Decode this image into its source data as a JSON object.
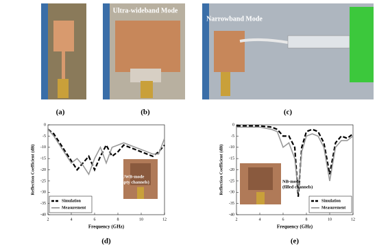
{
  "panels": [
    "(a)",
    "(b)",
    "(c)",
    "(d)",
    "(e)"
  ],
  "photos": {
    "b_label": "Ultra-wideband Mode",
    "c_label": "Narrowband Mode"
  },
  "chart_data": [
    {
      "type": "line",
      "xlabel": "Frequency (GHz)",
      "ylabel": "Reflection Coefficient (dB)",
      "x": [
        2,
        2.5,
        3,
        3.5,
        4,
        4.5,
        5,
        5.5,
        6,
        6.5,
        7,
        7.5,
        8,
        8.5,
        9,
        9.5,
        10,
        10.5,
        11,
        11.5,
        12
      ],
      "series": [
        {
          "name": "Simulation",
          "color": "#000000",
          "dash": true,
          "values": [
            -2,
            -4,
            -8,
            -12,
            -16,
            -20,
            -17,
            -14,
            -20,
            -14,
            -9,
            -14,
            -12,
            -9,
            -10,
            -11,
            -12,
            -13,
            -14,
            -12,
            -9
          ]
        },
        {
          "name": "Measurement",
          "color": "#999999",
          "dash": false,
          "values": [
            -2,
            -5,
            -9,
            -13,
            -17,
            -15,
            -18,
            -22,
            -15,
            -10,
            -17,
            -10,
            -9,
            -8,
            -9,
            -10,
            -11,
            -12,
            -13,
            -13,
            -6
          ]
        }
      ],
      "xlim": [
        2,
        12
      ],
      "xticks": [
        2,
        4,
        6,
        8,
        10,
        12
      ],
      "ylim": [
        -40,
        0
      ],
      "yticks": [
        0,
        -5,
        -10,
        -15,
        -20,
        -25,
        -30,
        -35,
        -40
      ],
      "legend": "lower left",
      "annotations": [
        "UWB-mode",
        "(empty channels)"
      ]
    },
    {
      "type": "line",
      "xlabel": "Frequency (GHz)",
      "ylabel": "Reflection Coefficient (dB)",
      "x": [
        2,
        3,
        4,
        5,
        5.5,
        6,
        6.5,
        7,
        7.3,
        7.6,
        8,
        8.5,
        9,
        9.5,
        10,
        10.5,
        11,
        11.5,
        12
      ],
      "series": [
        {
          "name": "Simulation",
          "color": "#000000",
          "dash": true,
          "values": [
            -0.5,
            -0.5,
            -0.5,
            -1,
            -2,
            -5,
            -5,
            -10,
            -32,
            -10,
            -3,
            -2,
            -3,
            -8,
            -22,
            -8,
            -5,
            -6,
            -4
          ]
        },
        {
          "name": "Measurement",
          "color": "#999999",
          "dash": false,
          "values": [
            -1,
            -1,
            -1,
            -2,
            -3,
            -10,
            -8,
            -15,
            -30,
            -12,
            -5,
            -4,
            -5,
            -10,
            -25,
            -10,
            -7,
            -7,
            -5
          ]
        }
      ],
      "xlim": [
        2,
        12
      ],
      "xticks": [
        2,
        4,
        6,
        8,
        10,
        12
      ],
      "ylim": [
        -40,
        0
      ],
      "yticks": [
        0,
        -5,
        -10,
        -15,
        -20,
        -25,
        -30,
        -35,
        -40
      ],
      "legend": "lower right",
      "annotations": [
        "NB-mode",
        "(filled channels)"
      ]
    }
  ]
}
